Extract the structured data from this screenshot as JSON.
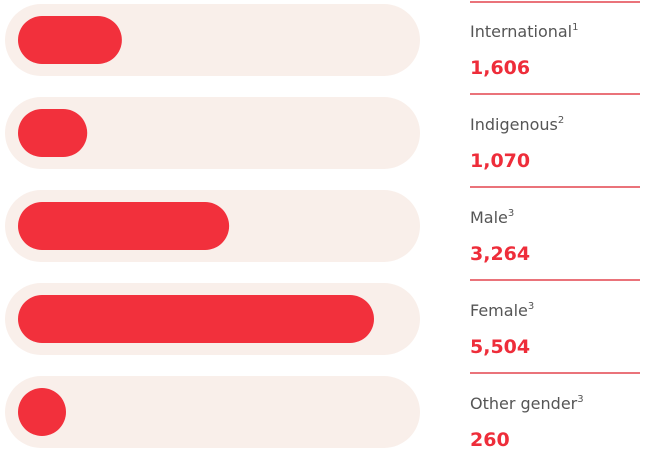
{
  "chart_data": {
    "type": "bar",
    "orientation": "horizontal",
    "categories": [
      "International",
      "Indigenous",
      "Male",
      "Female",
      "Other gender"
    ],
    "notes": [
      "1",
      "2",
      "3",
      "3",
      "3"
    ],
    "values": [
      1606,
      1070,
      3264,
      5504,
      260
    ],
    "value_labels": [
      "1,606",
      "1,070",
      "3,264",
      "5,504",
      "260"
    ],
    "color": "#f2303c",
    "track_color": "#f9efea",
    "divider_color": "#e4454f"
  }
}
